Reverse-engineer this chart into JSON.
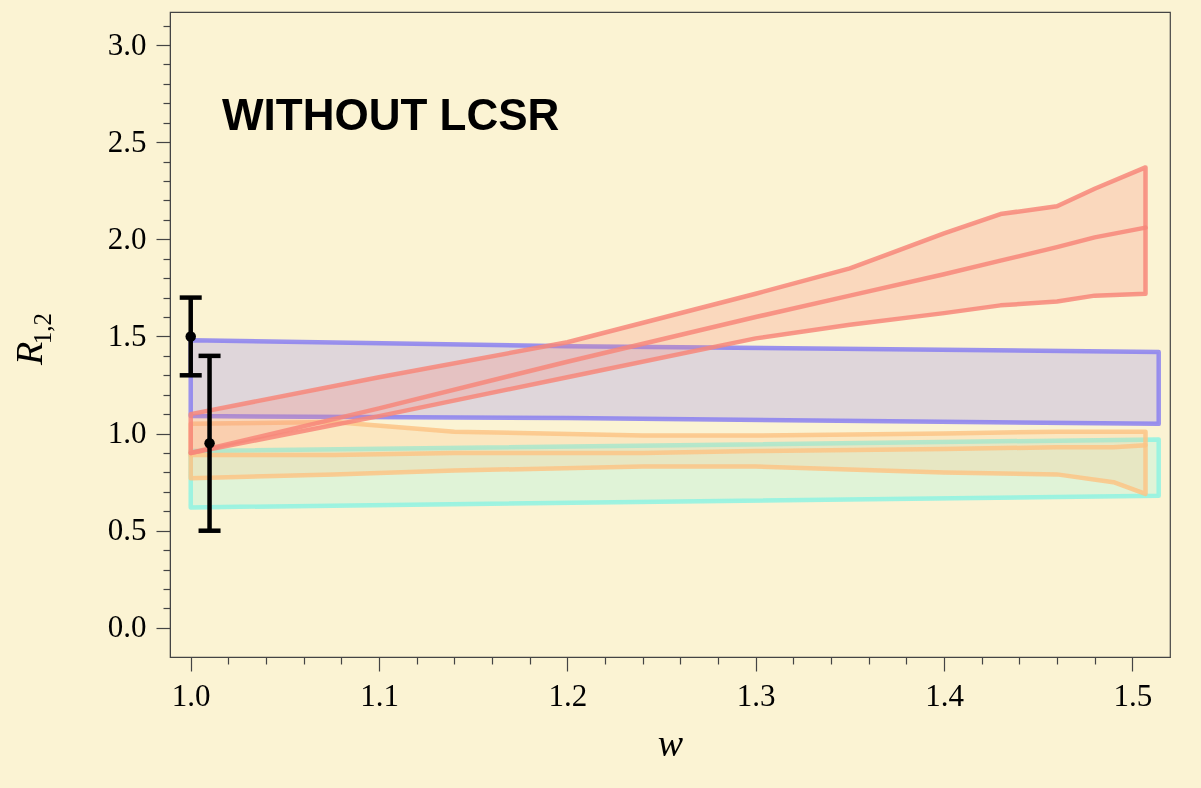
{
  "chart_data": {
    "type": "line",
    "xlabel": "w",
    "ylabel": "R$_{1,2}$",
    "annotations": [
      "WITHOUT LCSR"
    ],
    "xlim": [
      0.989,
      1.52
    ],
    "ylim": [
      -0.15,
      3.17
    ],
    "xticks": [
      {
        "value": 1.0,
        "label": "1.0"
      },
      {
        "value": 1.02,
        "label": null
      },
      {
        "value": 1.04,
        "label": null
      },
      {
        "value": 1.06,
        "label": null
      },
      {
        "value": 1.08,
        "label": null
      },
      {
        "value": 1.1,
        "label": "1.1"
      },
      {
        "value": 1.12,
        "label": null
      },
      {
        "value": 1.14,
        "label": null
      },
      {
        "value": 1.16,
        "label": null
      },
      {
        "value": 1.18,
        "label": null
      },
      {
        "value": 1.2,
        "label": "1.2"
      },
      {
        "value": 1.22,
        "label": null
      },
      {
        "value": 1.24,
        "label": null
      },
      {
        "value": 1.26,
        "label": null
      },
      {
        "value": 1.28,
        "label": null
      },
      {
        "value": 1.3,
        "label": "1.3"
      },
      {
        "value": 1.32,
        "label": null
      },
      {
        "value": 1.34,
        "label": null
      },
      {
        "value": 1.36,
        "label": null
      },
      {
        "value": 1.38,
        "label": null
      },
      {
        "value": 1.4,
        "label": "1.4"
      },
      {
        "value": 1.42,
        "label": null
      },
      {
        "value": 1.44,
        "label": null
      },
      {
        "value": 1.46,
        "label": null
      },
      {
        "value": 1.48,
        "label": null
      },
      {
        "value": 1.5,
        "label": "1.5"
      }
    ],
    "yticks": [
      {
        "value": 0,
        "label": "0.0"
      },
      {
        "value": 0.1,
        "label": null
      },
      {
        "value": 0.2,
        "label": null
      },
      {
        "value": 0.3,
        "label": null
      },
      {
        "value": 0.4,
        "label": null
      },
      {
        "value": 0.5,
        "label": "0.5"
      },
      {
        "value": 0.6,
        "label": null
      },
      {
        "value": 0.7,
        "label": null
      },
      {
        "value": 0.8,
        "label": null
      },
      {
        "value": 0.9,
        "label": null
      },
      {
        "value": 1.0,
        "label": "1.0"
      },
      {
        "value": 1.1,
        "label": null
      },
      {
        "value": 1.2,
        "label": null
      },
      {
        "value": 1.3,
        "label": null
      },
      {
        "value": 1.4,
        "label": null
      },
      {
        "value": 1.5,
        "label": "1.5"
      },
      {
        "value": 1.6,
        "label": null
      },
      {
        "value": 1.7,
        "label": null
      },
      {
        "value": 1.8,
        "label": null
      },
      {
        "value": 1.9,
        "label": null
      },
      {
        "value": 2.0,
        "label": "2.0"
      },
      {
        "value": 2.1,
        "label": null
      },
      {
        "value": 2.2,
        "label": null
      },
      {
        "value": 2.3,
        "label": null
      },
      {
        "value": 2.4,
        "label": null
      },
      {
        "value": 2.5,
        "label": "2.5"
      },
      {
        "value": 2.6,
        "label": null
      },
      {
        "value": 2.7,
        "label": null
      },
      {
        "value": 2.8,
        "label": null
      },
      {
        "value": 2.9,
        "label": null
      },
      {
        "value": 3.0,
        "label": "3.0"
      },
      {
        "value": 3.1,
        "label": null
      }
    ],
    "series": [
      {
        "color": "#8a80f0",
        "x": [
          1.0,
          1.2,
          1.514
        ],
        "values": [
          null,
          null,
          null
        ],
        "lower": [
          1.09,
          1.08,
          1.05
        ],
        "upper": [
          1.48,
          1.45,
          1.42
        ]
      },
      {
        "color": "#8ef2e2",
        "x": [
          1.0,
          1.514
        ],
        "values": [
          null,
          null
        ],
        "lower": [
          0.62,
          0.68
        ],
        "upper": [
          0.91,
          0.97
        ]
      },
      {
        "color": "#fcc486",
        "x": [
          1.0,
          1.076,
          1.14,
          1.24,
          1.3,
          1.4,
          1.46,
          1.49,
          1.507
        ],
        "values": [
          0.89,
          0.89,
          0.9,
          0.9,
          0.91,
          0.92,
          0.93,
          0.93,
          0.94
        ],
        "lower": [
          0.77,
          0.79,
          0.81,
          0.83,
          0.83,
          0.8,
          0.79,
          0.75,
          0.69
        ],
        "upper": [
          1.05,
          1.06,
          1.01,
          0.99,
          0.99,
          1.0,
          1.01,
          1.01,
          1.01
        ]
      },
      {
        "color": "#f7877a",
        "x": [
          1.0,
          1.1,
          1.2,
          1.3,
          1.35,
          1.4,
          1.43,
          1.46,
          1.48,
          1.507
        ],
        "values": [
          0.9,
          1.13,
          1.37,
          1.6,
          1.71,
          1.82,
          1.89,
          1.96,
          2.01,
          2.06
        ],
        "lower": [
          0.9,
          1.09,
          1.29,
          1.49,
          1.56,
          1.62,
          1.66,
          1.68,
          1.71,
          1.72
        ],
        "upper": [
          1.1,
          1.29,
          1.47,
          1.72,
          1.85,
          2.03,
          2.13,
          2.17,
          2.26,
          2.37
        ]
      },
      {
        "type": "scatter",
        "color": "#000000",
        "marker": "circle",
        "x": [
          1.0,
          1.01
        ],
        "values": [
          1.5,
          0.95
        ],
        "errors": [
          [
            1.3,
            1.7
          ],
          [
            0.5,
            1.4
          ]
        ]
      }
    ]
  }
}
